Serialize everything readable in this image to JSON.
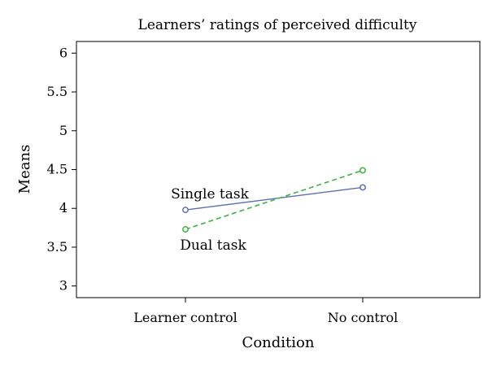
{
  "chart_data": {
    "type": "line",
    "title": "Learners’ ratings of perceived difficulty",
    "xlabel": "Condition",
    "ylabel": "Means",
    "categories": [
      "Learner control",
      "No control"
    ],
    "ylim": [
      2.85,
      6.15
    ],
    "yticks": [
      "3",
      "3.5",
      "4",
      "4.5",
      "5",
      "5.5",
      "6"
    ],
    "grid": false,
    "series": [
      {
        "name": "Single task",
        "values": [
          3.98,
          4.27
        ],
        "color": "#5b6fb0",
        "line_style": "solid",
        "marker": "open-circle"
      },
      {
        "name": "Dual task",
        "values": [
          3.73,
          4.49
        ],
        "color": "#3cb43c",
        "line_style": "dashed",
        "marker": "open-circle"
      }
    ]
  }
}
